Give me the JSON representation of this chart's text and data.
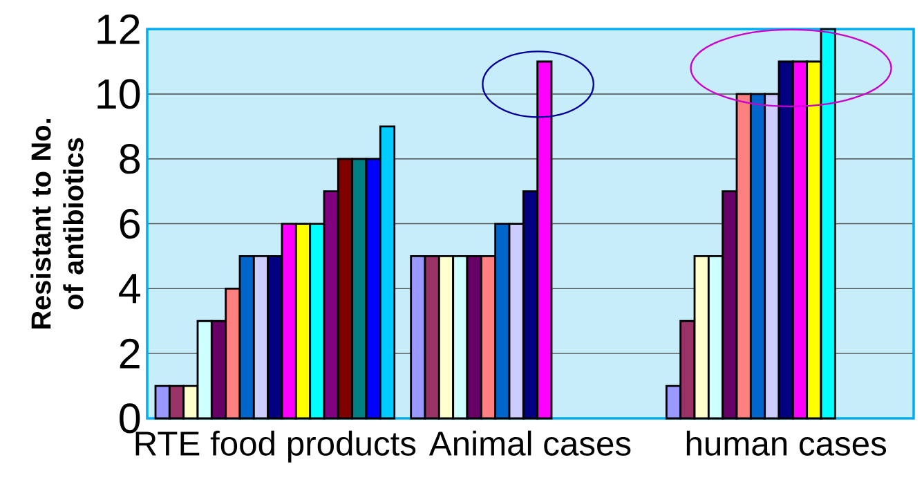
{
  "chart_data": {
    "type": "bar",
    "ylabel": "Resistant to No. of antibiotics",
    "categories": [
      "RTE food products",
      "Animal cases",
      "human cases"
    ],
    "series": [
      {
        "color": "#9999ff",
        "values": [
          1,
          5,
          1
        ]
      },
      {
        "color": "#993366",
        "values": [
          1,
          5,
          3
        ]
      },
      {
        "color": "#ffffcc",
        "values": [
          1,
          5,
          5
        ]
      },
      {
        "color": "#ccffff",
        "values": [
          3,
          5,
          5
        ]
      },
      {
        "color": "#660066",
        "values": [
          3,
          5,
          7
        ]
      },
      {
        "color": "#ff8080",
        "values": [
          4,
          5,
          10
        ]
      },
      {
        "color": "#0066cc",
        "values": [
          5,
          6,
          10
        ]
      },
      {
        "color": "#ccccff",
        "values": [
          5,
          6,
          10
        ]
      },
      {
        "color": "#000080",
        "values": [
          5,
          7,
          11
        ]
      },
      {
        "color": "#ff00ff",
        "values": [
          6,
          11,
          11
        ]
      },
      {
        "color": "#ffff00",
        "values": [
          6,
          null,
          11
        ]
      },
      {
        "color": "#00ffff",
        "values": [
          6,
          null,
          12
        ]
      },
      {
        "color": "#800080",
        "values": [
          7,
          null,
          null
        ]
      },
      {
        "color": "#800000",
        "values": [
          8,
          null,
          null
        ]
      },
      {
        "color": "#008080",
        "values": [
          8,
          null,
          null
        ]
      },
      {
        "color": "#0000ff",
        "values": [
          8,
          null,
          null
        ]
      },
      {
        "color": "#00ccff",
        "values": [
          9,
          null,
          null
        ]
      }
    ],
    "ylim": [
      0,
      12
    ],
    "yticks": [
      0,
      2,
      4,
      6,
      8,
      10,
      12
    ],
    "grid": "y"
  }
}
